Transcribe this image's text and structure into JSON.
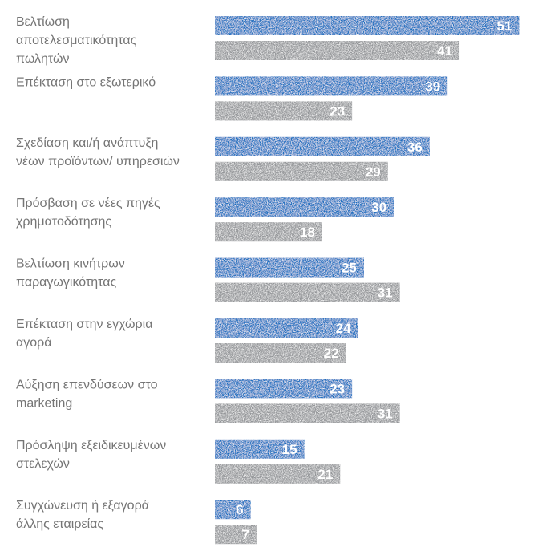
{
  "chart_data": {
    "type": "bar",
    "orientation": "horizontal",
    "categories": [
      [
        "Βελτίωση",
        "αποτελεσματικότητας",
        "πωλητών"
      ],
      [
        "Επέκταση στο εξωτερικό"
      ],
      [
        "Σχεδίαση και/ή ανάπτυξη",
        "νέων προϊόντων/ υπηρεσιών"
      ],
      [
        "Πρόσβαση σε νέες πηγές",
        "χρηματοδότησης"
      ],
      [
        "Βελτίωση κινήτρων",
        "παραγωγικότητας"
      ],
      [
        "Επέκταση στην εγχώρια",
        "αγορά"
      ],
      [
        "Αύξηση επενδύσεων στο",
        "marketing"
      ],
      [
        "Πρόσληψη εξειδικευμένων",
        "στελεχών"
      ],
      [
        "Συγχώνευση ή εξαγορά",
        "άλλης εταιρείας"
      ]
    ],
    "series": [
      {
        "values": [
          51,
          39,
          36,
          30,
          25,
          24,
          23,
          15,
          6
        ],
        "color": "#1a6fc0"
      },
      {
        "values": [
          41,
          23,
          29,
          18,
          31,
          22,
          31,
          21,
          7
        ],
        "color": "#939598"
      }
    ],
    "xlim": [
      0,
      53
    ],
    "grid": false,
    "legend": "none"
  }
}
